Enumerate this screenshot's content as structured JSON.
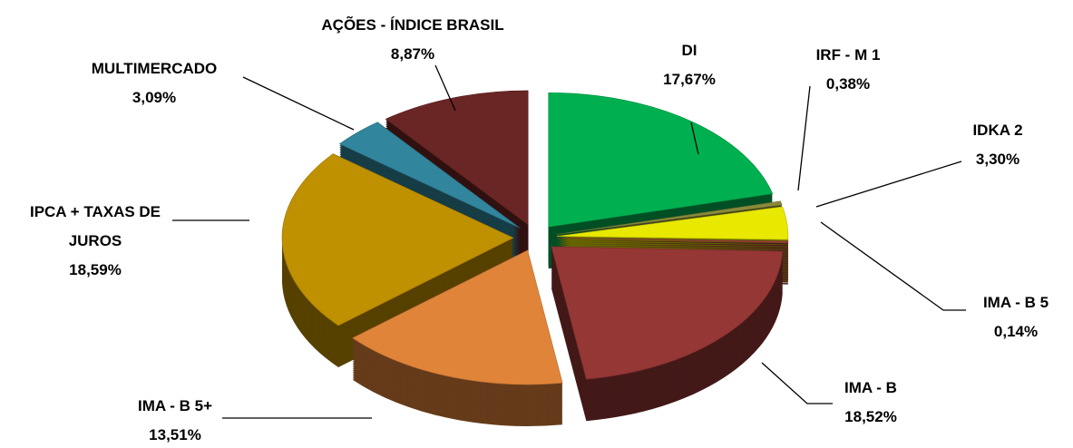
{
  "chart_data": {
    "type": "pie3d",
    "categories": [
      "DI",
      "IRF - M 1",
      "IDKA 2",
      "IMA - B 5",
      "IMA - B",
      "IMA - B 5+",
      "IPCA + TAXAS DE JUROS",
      "MULTIMERCADO",
      "AÇÕES - ÍNDICE BRASIL"
    ],
    "values": [
      17.67,
      0.38,
      3.3,
      0.14,
      18.52,
      13.51,
      18.59,
      3.09,
      8.87
    ],
    "value_labels": [
      "17,67%",
      "0,38%",
      "3,30%",
      "0,14%",
      "18,52%",
      "13,51%",
      "18,59%",
      "3,09%",
      "8,87%"
    ],
    "colors": [
      "#00b050",
      "#8a8a3a",
      "#e8e800",
      "#a0403c",
      "#953735",
      "#e0843a",
      "#bf9000",
      "#31859c",
      "#6a2624"
    ]
  }
}
